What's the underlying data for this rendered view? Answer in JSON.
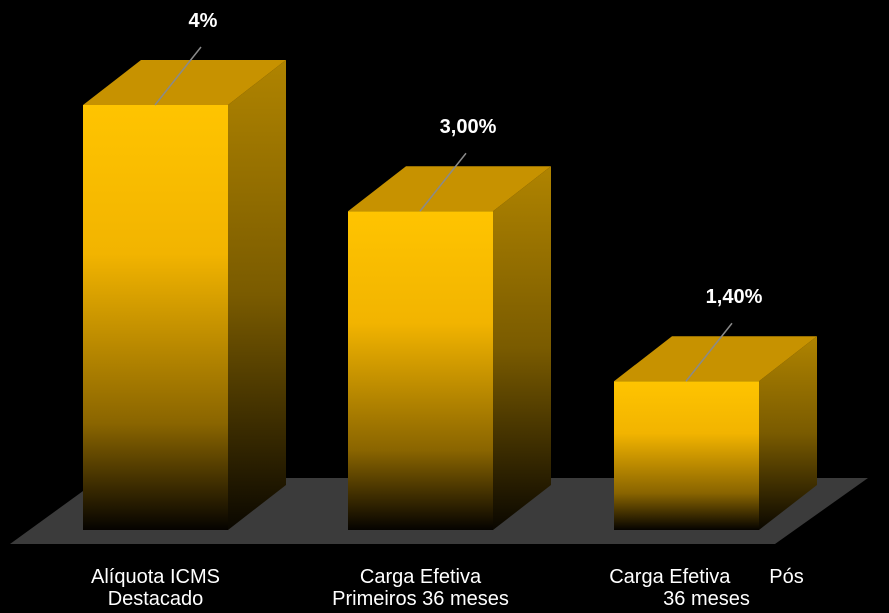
{
  "chart_data": {
    "type": "bar",
    "style": "3d-column",
    "categories": [
      [
        "Alíquota ICMS",
        "Destacado"
      ],
      [
        "Carga Efetiva",
        "Primeiros 36 meses"
      ],
      [
        "Carga Efetiva       Pós",
        "36 meses"
      ]
    ],
    "values": [
      4,
      3.0,
      1.4
    ],
    "data_labels": [
      "4%",
      "3,00%",
      "1,40%"
    ],
    "ylim": [
      0,
      4
    ],
    "grid": false,
    "legend": "none",
    "colors": {
      "background": "#000000",
      "bar_front_top": "#ffc000",
      "bar_front_bottom": "#000000",
      "bar_side": "#a87c00",
      "bar_top": "#c79200",
      "floor": "#3c3c3c",
      "leader_line": "#8a8a8a",
      "text": "#ffffff"
    }
  }
}
